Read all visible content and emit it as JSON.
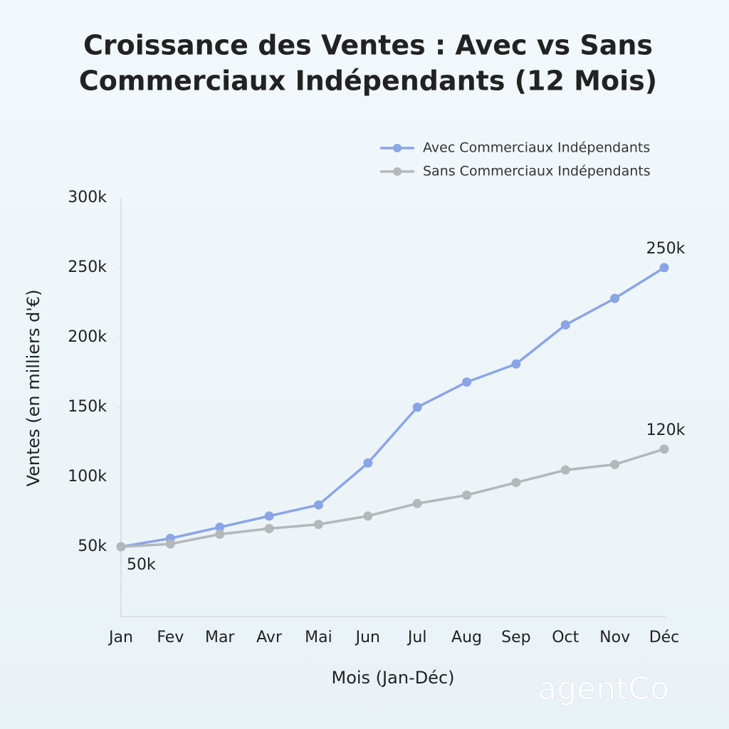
{
  "chart_data": {
    "type": "line",
    "title": "Croissance des Ventes : Avec vs Sans",
    "subtitle": "Commerciaux Indépendants (12 Mois)",
    "x_label": "Mois (Jan-Déc)",
    "y_label": "Ventes (en milliers d'€)",
    "categories": [
      "Jan",
      "Fev",
      "Mar",
      "Avr",
      "Mai",
      "Jun",
      "Jul",
      "Aug",
      "Sep",
      "Oct",
      "Nov",
      "Déc"
    ],
    "series": [
      {
        "name": "Avec Commerciaux Indépendants",
        "color": "#8aa5e6",
        "values": [
          50,
          56,
          64,
          72,
          80,
          110,
          150,
          168,
          181,
          209,
          228,
          250
        ],
        "value_labels": [
          "50k",
          null,
          null,
          null,
          null,
          null,
          null,
          null,
          null,
          null,
          null,
          "250k"
        ]
      },
      {
        "name": "Sans Commerciaux Indépendants",
        "color": "#b4b8bb",
        "values": [
          50,
          52,
          59,
          63,
          66,
          72,
          81,
          87,
          96,
          105,
          109,
          120
        ],
        "value_labels": [
          null,
          null,
          null,
          null,
          null,
          null,
          null,
          null,
          null,
          null,
          null,
          "120k"
        ]
      }
    ],
    "ylim": [
      0,
      300
    ],
    "yticks": [
      {
        "value": 50,
        "label": "50k"
      },
      {
        "value": 100,
        "label": "100k"
      },
      {
        "value": 150,
        "label": "150k"
      },
      {
        "value": 200,
        "label": "200k"
      },
      {
        "value": 250,
        "label": "250k"
      },
      {
        "value": 300,
        "label": "300k"
      }
    ],
    "grid": false,
    "legend": "upper right",
    "watermark": "agentCo"
  }
}
